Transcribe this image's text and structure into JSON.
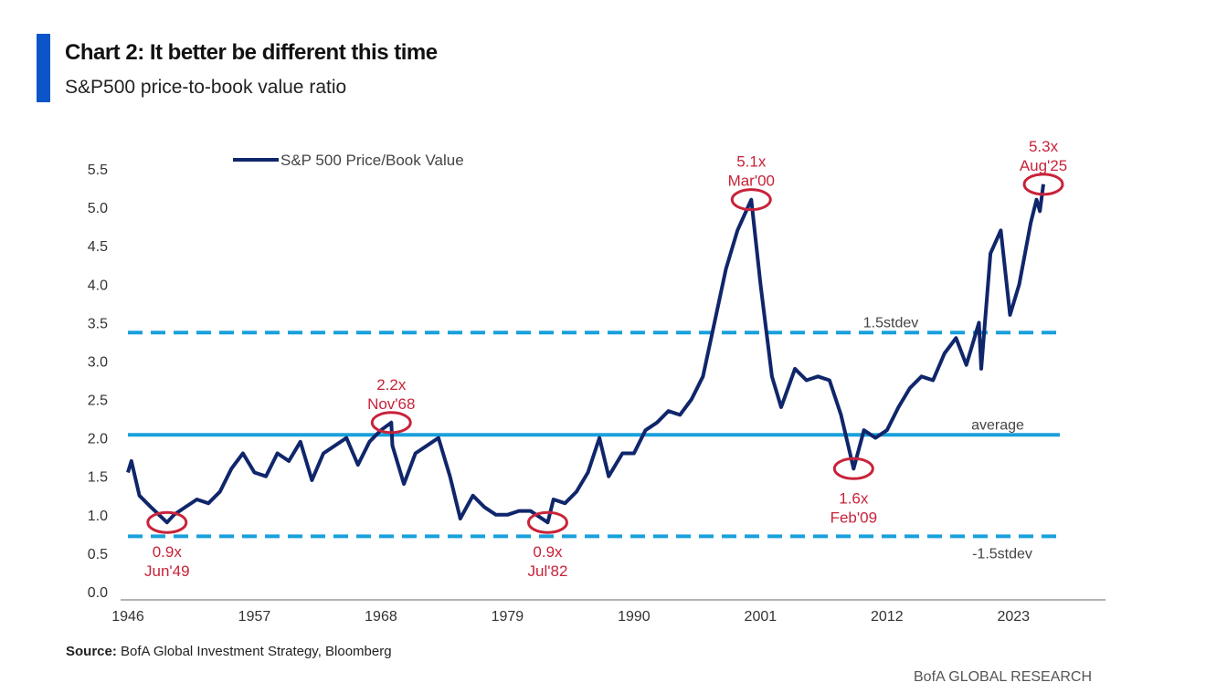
{
  "header": {
    "title": "Chart 2: It better be different this time",
    "subtitle": "S&P500 price-to-book value ratio"
  },
  "footer": {
    "source_label": "Source:",
    "source_text": " BofA Global Investment Strategy, Bloomberg",
    "brand": "BofA GLOBAL RESEARCH"
  },
  "colors": {
    "accent": "#0b55c9",
    "series": "#10266b",
    "reference": "#19a0dc",
    "annotation": "#c8233a"
  },
  "chart_data": {
    "type": "line",
    "title": "Chart 2: It better be different this time",
    "subtitle": "S&P500 price-to-book value ratio",
    "xlabel": "",
    "ylabel": "",
    "xlim": [
      1946,
      2031
    ],
    "ylim": [
      0,
      5.5
    ],
    "x_ticks": [
      1946,
      1957,
      1968,
      1979,
      1990,
      2001,
      2012,
      2023
    ],
    "y_ticks": [
      "0.0",
      "0.5",
      "1.0",
      "1.5",
      "2.0",
      "2.5",
      "3.0",
      "3.5",
      "4.0",
      "4.5",
      "5.0",
      "5.5"
    ],
    "legend": {
      "position": "top-left",
      "entries": [
        "S&P 500 Price/Book Value"
      ]
    },
    "series": [
      {
        "name": "S&P 500 Price/Book Value",
        "x": [
          1946,
          1946.3,
          1947,
          1948,
          1949.4,
          1950,
          1951,
          1952,
          1953,
          1954,
          1955,
          1956,
          1957,
          1958,
          1959,
          1960,
          1961,
          1962,
          1963,
          1964,
          1965,
          1966,
          1967,
          1968,
          1968.9,
          1969,
          1970,
          1971,
          1972,
          1973,
          1974,
          1974.9,
          1976,
          1977,
          1978,
          1979,
          1980,
          1981,
          1982.5,
          1983,
          1984,
          1985,
          1986,
          1987,
          1987.8,
          1989,
          1990,
          1991,
          1992,
          1993,
          1994,
          1995,
          1996,
          1997,
          1998,
          1999,
          2000.2,
          2001,
          2002,
          2002.8,
          2004,
          2005,
          2006,
          2007,
          2008,
          2009.1,
          2010,
          2011,
          2012,
          2013,
          2014,
          2015,
          2016,
          2017,
          2018,
          2018.9,
          2020,
          2020.2,
          2021,
          2021.9,
          2022.7,
          2023.5,
          2024,
          2024.5,
          2025,
          2025.3,
          2025.6
        ],
        "values": [
          1.55,
          1.7,
          1.25,
          1.1,
          0.9,
          1.0,
          1.1,
          1.2,
          1.15,
          1.3,
          1.6,
          1.8,
          1.55,
          1.5,
          1.8,
          1.7,
          1.95,
          1.45,
          1.8,
          1.9,
          2.0,
          1.65,
          1.95,
          2.1,
          2.2,
          1.9,
          1.4,
          1.8,
          1.9,
          2.0,
          1.5,
          0.95,
          1.25,
          1.1,
          1.0,
          1.0,
          1.05,
          1.05,
          0.9,
          1.2,
          1.15,
          1.3,
          1.55,
          2.0,
          1.5,
          1.8,
          1.8,
          2.1,
          2.2,
          2.35,
          2.3,
          2.5,
          2.8,
          3.5,
          4.2,
          4.7,
          5.1,
          4.0,
          2.8,
          2.4,
          2.9,
          2.75,
          2.8,
          2.75,
          2.3,
          1.6,
          2.1,
          2.0,
          2.1,
          2.4,
          2.65,
          2.8,
          2.75,
          3.1,
          3.3,
          2.95,
          3.5,
          2.9,
          4.4,
          4.7,
          3.6,
          4.0,
          4.4,
          4.8,
          5.1,
          4.95,
          5.3
        ]
      }
    ],
    "reference_lines": [
      {
        "label": "1.5stdev",
        "value": 3.37,
        "style": "dashed"
      },
      {
        "label": "average",
        "value": 2.04,
        "style": "solid"
      },
      {
        "label": "-1.5stdev",
        "value": 0.72,
        "style": "dashed"
      }
    ],
    "annotations": [
      {
        "x": 1949.4,
        "y": 0.9,
        "value": "0.9x",
        "date": "Jun'49",
        "pos": "below"
      },
      {
        "x": 1968.9,
        "y": 2.2,
        "value": "2.2x",
        "date": "Nov'68",
        "pos": "above"
      },
      {
        "x": 1982.5,
        "y": 0.9,
        "value": "0.9x",
        "date": "Jul'82",
        "pos": "below"
      },
      {
        "x": 2000.2,
        "y": 5.1,
        "value": "5.1x",
        "date": "Mar'00",
        "pos": "above"
      },
      {
        "x": 2009.1,
        "y": 1.6,
        "value": "1.6x",
        "date": "Feb'09",
        "pos": "below"
      },
      {
        "x": 2025.6,
        "y": 5.3,
        "value": "5.3x",
        "date": "Aug'25",
        "pos": "above"
      }
    ]
  }
}
